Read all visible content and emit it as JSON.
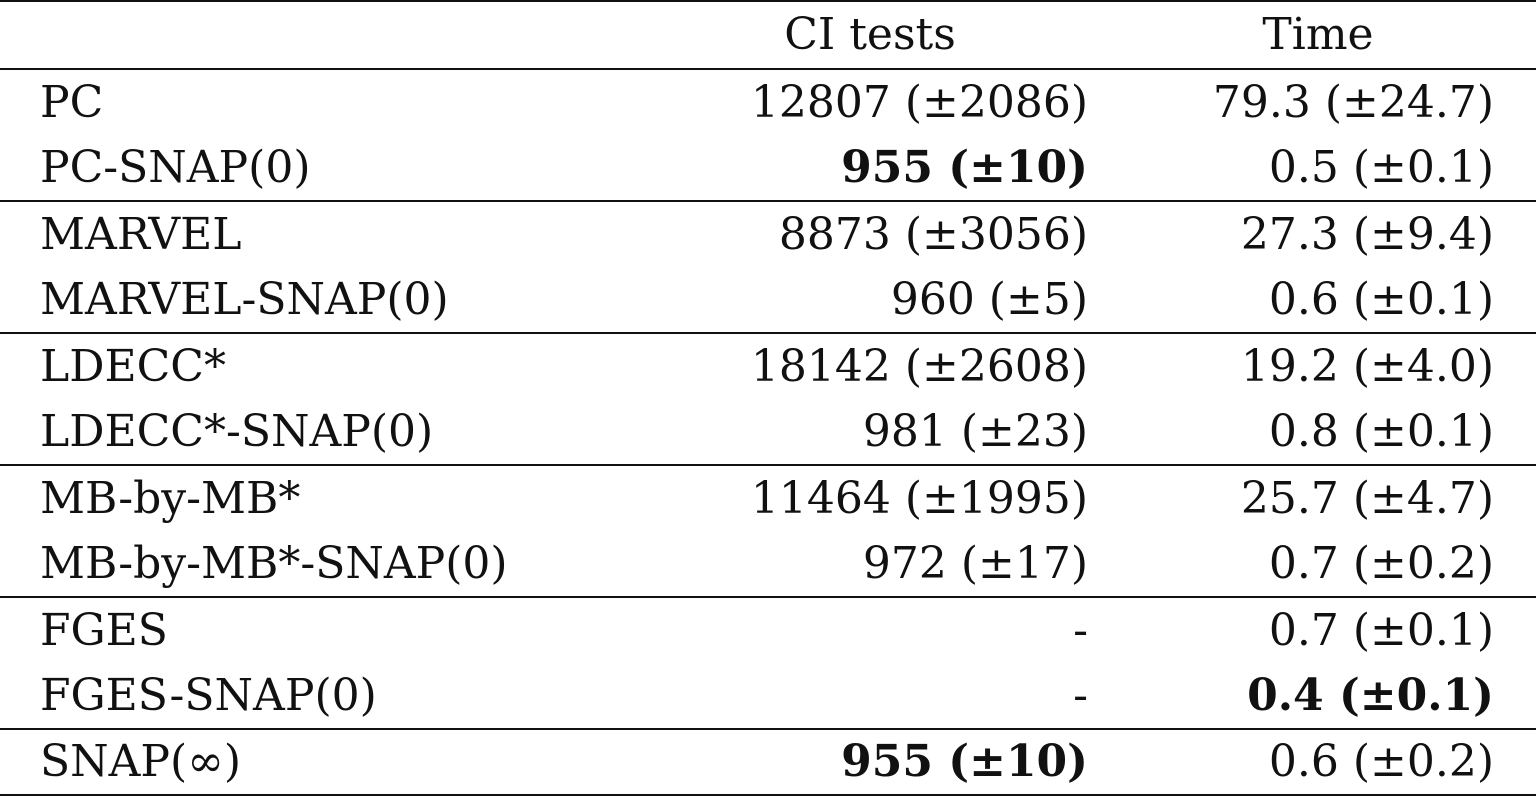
{
  "table": {
    "headers": [
      "",
      "CI tests",
      "Time"
    ],
    "groups": [
      [
        {
          "method": "PC",
          "ci": "12807 (±2086)",
          "time": "79.3 (±24.7)",
          "ci_bold": false,
          "time_bold": false
        },
        {
          "method": "PC-SNAP(0)",
          "ci": "955 (±10)",
          "time": "0.5 (±0.1)",
          "ci_bold": true,
          "time_bold": false
        }
      ],
      [
        {
          "method": "MARVEL",
          "ci": "8873 (±3056)",
          "time": "27.3 (±9.4)",
          "ci_bold": false,
          "time_bold": false
        },
        {
          "method": "MARVEL-SNAP(0)",
          "ci": "960 (±5)",
          "time": "0.6 (±0.1)",
          "ci_bold": false,
          "time_bold": false
        }
      ],
      [
        {
          "method": "LDECC*",
          "ci": "18142 (±2608)",
          "time": "19.2 (±4.0)",
          "ci_bold": false,
          "time_bold": false
        },
        {
          "method": "LDECC*-SNAP(0)",
          "ci": "981 (±23)",
          "time": "0.8 (±0.1)",
          "ci_bold": false,
          "time_bold": false
        }
      ],
      [
        {
          "method": "MB-by-MB*",
          "ci": "11464 (±1995)",
          "time": "25.7 (±4.7)",
          "ci_bold": false,
          "time_bold": false
        },
        {
          "method": "MB-by-MB*-SNAP(0)",
          "ci": "972 (±17)",
          "time": "0.7 (±0.2)",
          "ci_bold": false,
          "time_bold": false
        }
      ],
      [
        {
          "method": "FGES",
          "ci": "-",
          "time": "0.7 (±0.1)",
          "ci_bold": false,
          "time_bold": false
        },
        {
          "method": "FGES-SNAP(0)",
          "ci": "-",
          "time": "0.4 (±0.1)",
          "ci_bold": false,
          "time_bold": true
        }
      ],
      [
        {
          "method": "SNAP(∞)",
          "ci": "955 (±10)",
          "time": "0.6 (±0.2)",
          "ci_bold": true,
          "time_bold": false
        }
      ]
    ]
  }
}
